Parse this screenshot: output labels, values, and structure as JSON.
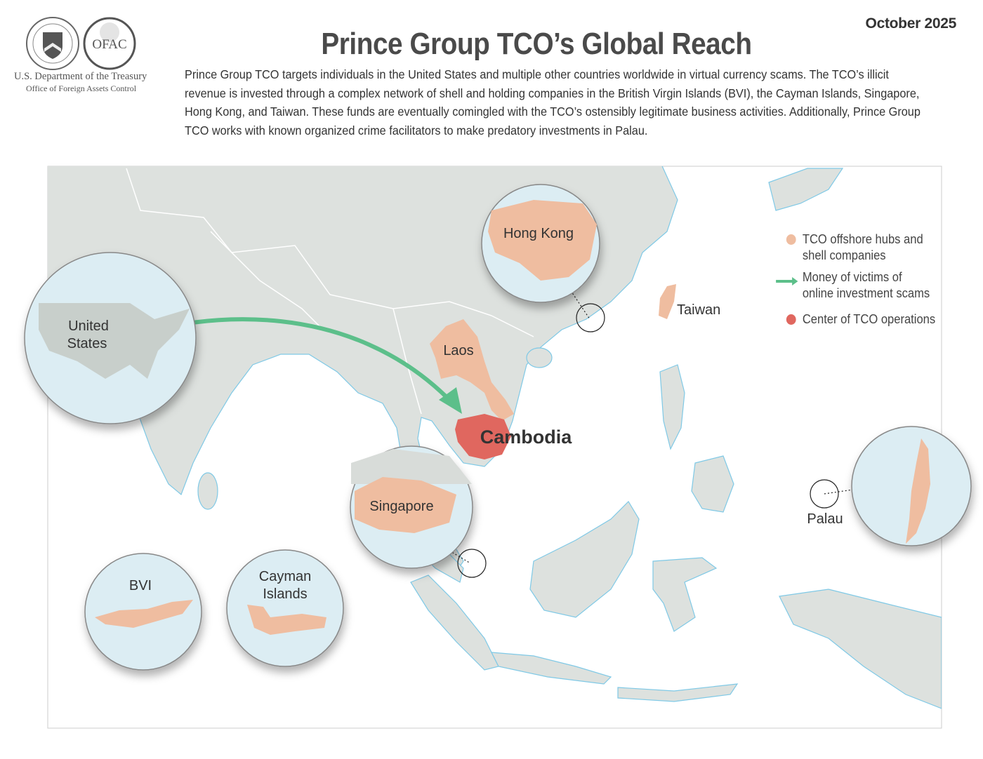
{
  "header": {
    "date": "October 2025",
    "title": "Prince Group TCO’s Global Reach",
    "description": "Prince Group TCO targets individuals in the United States and multiple other countries worldwide in virtual currency scams. The TCO’s illicit revenue is invested through a complex network of shell and holding companies in the British Virgin Islands (BVI), the Cayman Islands, Singapore, Hong Kong, and Taiwan. These funds are eventually comingled with the TCO’s ostensibly legitimate business activities. Additionally, Prince Group TCO works with known organized crime facilitators to make predatory investments in Palau."
  },
  "logos": {
    "treasury_seal_text": "THE DEPARTMENT OF THE TREASURY 1789",
    "ofac_seal_text": "OFAC",
    "ofac_seal_subtext": "Office of Foreign Assets Control",
    "agency_line1": "U.S. Department of the Treasury",
    "agency_line2": "Office of Foreign Assets Control"
  },
  "map": {
    "labels": {
      "united_states_1": "United",
      "united_states_2": "States",
      "hong_kong": "Hong Kong",
      "taiwan": "Taiwan",
      "laos": "Laos",
      "cambodia": "Cambodia",
      "singapore": "Singapore",
      "bvi": "BVI",
      "cayman_1": "Cayman",
      "cayman_2": "Islands",
      "palau": "Palau"
    },
    "colors": {
      "land": "#dde1de",
      "sea": "#ffffff",
      "coast": "#7fc9e6",
      "hub": "#efbda0",
      "center": "#e0675f",
      "arrow": "#5cbf8a",
      "inset_water": "#dcedf3"
    }
  },
  "legend": {
    "items": [
      {
        "label_1": "TCO offshore hubs and",
        "label_2": "shell companies",
        "symbol": "salmon-dot",
        "color": "#efbda0"
      },
      {
        "label_1": "Money of victims of",
        "label_2": "online investment scams",
        "symbol": "green-arrow",
        "color": "#5cbf8a"
      },
      {
        "label_1": "Center of TCO operations",
        "symbol": "red-dot",
        "color": "#e0675f"
      }
    ]
  }
}
